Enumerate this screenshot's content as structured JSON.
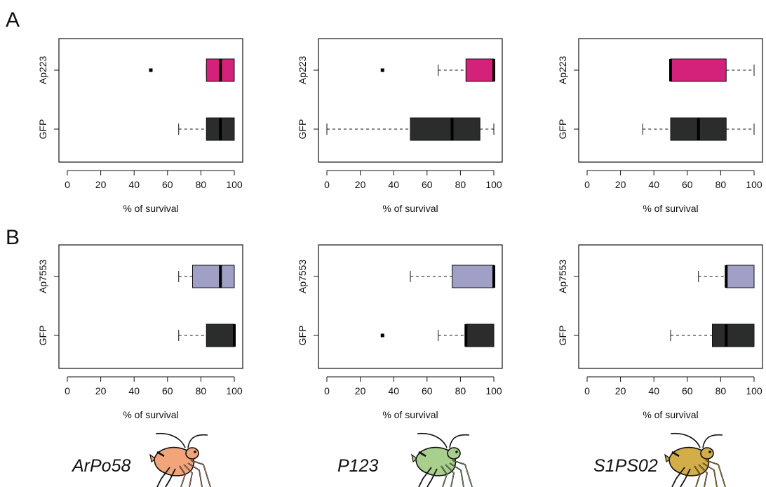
{
  "colors": {
    "ap223": "#d4217a",
    "ap7553": "#a09fc6",
    "gfp": "#2b2d2c",
    "ArPo58": "#f2a57a",
    "P123": "#a9cf8c",
    "S1PS02": "#d2ad4a"
  },
  "strains": [
    "ArPo58",
    "P123",
    "S1PS02"
  ],
  "chart_data": [
    {
      "panel": "A",
      "strain": "ArPo58",
      "type": "boxplot",
      "orientation": "horizontal",
      "xlabel": "% of survival",
      "xlim": [
        0,
        100
      ],
      "xticks": [
        0,
        20,
        40,
        60,
        80,
        100
      ],
      "categories": [
        "Ap223",
        "GFP"
      ],
      "boxes": [
        {
          "label": "Ap223",
          "color": "#d4217a",
          "whisker_low": 83.3,
          "q1": 83.3,
          "median": 91.7,
          "q3": 100,
          "whisker_high": 100,
          "outliers": [
            50
          ]
        },
        {
          "label": "GFP",
          "color": "#2b2d2c",
          "whisker_low": 66.7,
          "q1": 83.3,
          "median": 91.7,
          "q3": 100,
          "whisker_high": 100,
          "outliers": []
        }
      ]
    },
    {
      "panel": "A",
      "strain": "P123",
      "type": "boxplot",
      "orientation": "horizontal",
      "xlabel": "% of survival",
      "xlim": [
        0,
        100
      ],
      "xticks": [
        0,
        20,
        40,
        60,
        80,
        100
      ],
      "categories": [
        "Ap223",
        "GFP"
      ],
      "boxes": [
        {
          "label": "Ap223",
          "color": "#d4217a",
          "whisker_low": 66.7,
          "q1": 83.3,
          "median": 100,
          "q3": 100,
          "whisker_high": 100,
          "outliers": [
            33.3
          ]
        },
        {
          "label": "GFP",
          "color": "#2b2d2c",
          "whisker_low": 0,
          "q1": 50,
          "median": 75,
          "q3": 91.7,
          "whisker_high": 100,
          "outliers": []
        }
      ]
    },
    {
      "panel": "A",
      "strain": "S1PS02",
      "type": "boxplot",
      "orientation": "horizontal",
      "xlabel": "% of survival",
      "xlim": [
        0,
        100
      ],
      "xticks": [
        0,
        20,
        40,
        60,
        80,
        100
      ],
      "categories": [
        "Ap223",
        "GFP"
      ],
      "boxes": [
        {
          "label": "Ap223",
          "color": "#d4217a",
          "whisker_low": 50,
          "q1": 50,
          "median": 50,
          "q3": 83.3,
          "whisker_high": 100,
          "outliers": []
        },
        {
          "label": "GFP",
          "color": "#2b2d2c",
          "whisker_low": 33.3,
          "q1": 50,
          "median": 66.7,
          "q3": 83.3,
          "whisker_high": 100,
          "outliers": []
        }
      ]
    },
    {
      "panel": "B",
      "strain": "ArPo58",
      "type": "boxplot",
      "orientation": "horizontal",
      "xlabel": "% of survival",
      "xlim": [
        0,
        100
      ],
      "xticks": [
        0,
        20,
        40,
        60,
        80,
        100
      ],
      "categories": [
        "Ap7553",
        "GFP"
      ],
      "boxes": [
        {
          "label": "Ap7553",
          "color": "#a09fc6",
          "whisker_low": 66.7,
          "q1": 75,
          "median": 91.7,
          "q3": 100,
          "whisker_high": 100,
          "outliers": []
        },
        {
          "label": "GFP",
          "color": "#2b2d2c",
          "whisker_low": 66.7,
          "q1": 83.3,
          "median": 100,
          "q3": 100,
          "whisker_high": 100,
          "outliers": []
        }
      ]
    },
    {
      "panel": "B",
      "strain": "P123",
      "type": "boxplot",
      "orientation": "horizontal",
      "xlabel": "% of survival",
      "xlim": [
        0,
        100
      ],
      "xticks": [
        0,
        20,
        40,
        60,
        80,
        100
      ],
      "categories": [
        "Ap7553",
        "GFP"
      ],
      "boxes": [
        {
          "label": "Ap7553",
          "color": "#a09fc6",
          "whisker_low": 50,
          "q1": 75,
          "median": 100,
          "q3": 100,
          "whisker_high": 100,
          "outliers": []
        },
        {
          "label": "GFP",
          "color": "#2b2d2c",
          "whisker_low": 66.7,
          "q1": 83.3,
          "median": 83.3,
          "q3": 100,
          "whisker_high": 100,
          "outliers": [
            33.3
          ]
        }
      ]
    },
    {
      "panel": "B",
      "strain": "S1PS02",
      "type": "boxplot",
      "orientation": "horizontal",
      "xlabel": "% of survival",
      "xlim": [
        0,
        100
      ],
      "xticks": [
        0,
        20,
        40,
        60,
        80,
        100
      ],
      "categories": [
        "Ap7553",
        "GFP"
      ],
      "boxes": [
        {
          "label": "Ap7553",
          "color": "#a09fc6",
          "whisker_low": 66.7,
          "q1": 83.3,
          "median": 83.3,
          "q3": 100,
          "whisker_high": 100,
          "outliers": []
        },
        {
          "label": "GFP",
          "color": "#2b2d2c",
          "whisker_low": 50,
          "q1": 75,
          "median": 83.3,
          "q3": 100,
          "whisker_high": 100,
          "outliers": []
        }
      ]
    }
  ]
}
